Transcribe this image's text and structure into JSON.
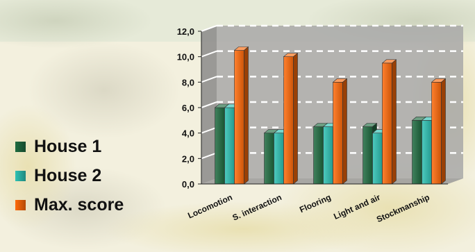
{
  "chart_data": {
    "type": "bar",
    "categories": [
      "Locomotion",
      "S. interaction",
      "Flooring",
      "Light and air",
      "Stockmanship"
    ],
    "series": [
      {
        "name": "House 1",
        "values": [
          6.0,
          4.0,
          4.5,
          4.5,
          5.0
        ],
        "color": "#1f6b40"
      },
      {
        "name": "House 2",
        "values": [
          6.0,
          4.0,
          4.5,
          4.0,
          5.0
        ],
        "color": "#2ec2b4"
      },
      {
        "name": "Max. score",
        "values": [
          10.5,
          10.0,
          8.0,
          9.5,
          8.0
        ],
        "color": "#ff6a0a"
      }
    ],
    "ylim": [
      0,
      12
    ],
    "yticks": [
      "0,0",
      "2,0",
      "4,0",
      "6,0",
      "8,0",
      "10,0",
      "12,0"
    ],
    "grid": true,
    "legend_position": "left"
  }
}
